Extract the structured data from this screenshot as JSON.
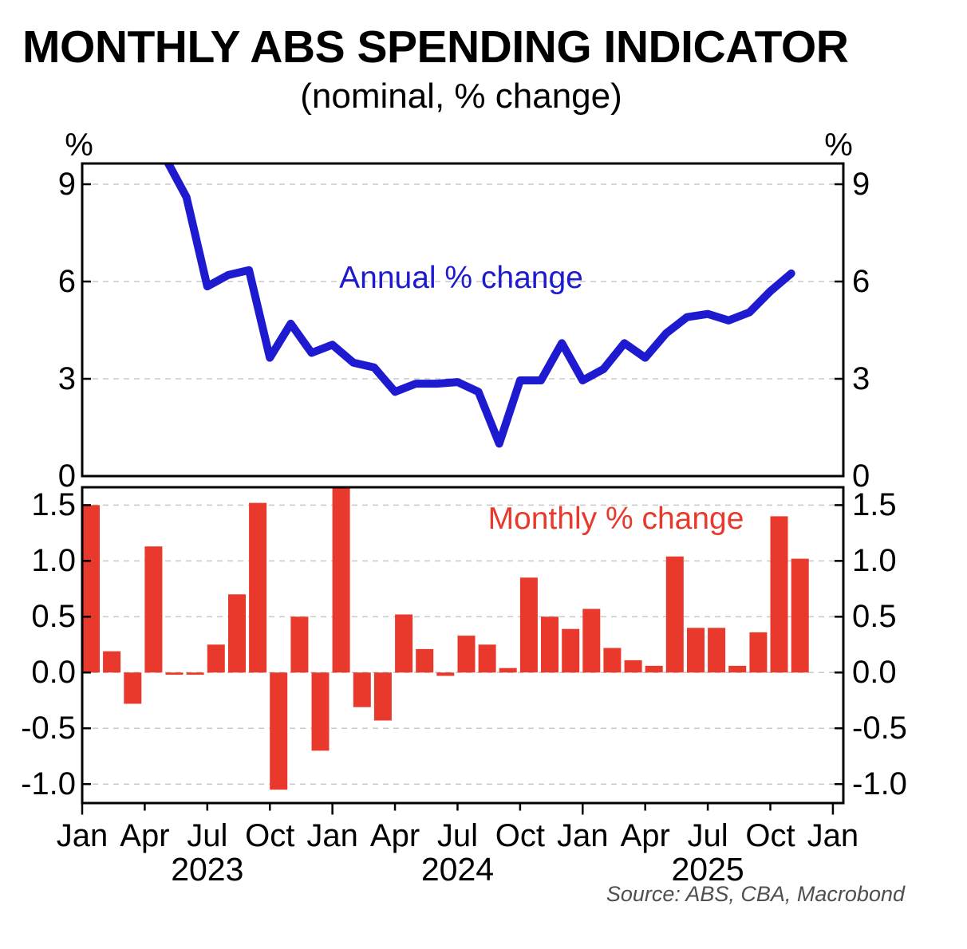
{
  "title": "MONTHLY ABS SPENDING INDICATOR",
  "subtitle": "(nominal, % change)",
  "source": "Source: ABS, CBA, Macrobond",
  "colors": {
    "annual_line": "#1e1ad0",
    "monthly_bar": "#e8392c",
    "axis": "#000000",
    "gridline": "#c8c8c8",
    "source_text": "#4f4f4f"
  },
  "top_panel": {
    "unit_label": "%",
    "series_label": "Annual % change",
    "ytick_labels": [
      "9",
      "6",
      "3",
      "0"
    ]
  },
  "bottom_panel": {
    "series_label": "Monthly % change",
    "ytick_labels": [
      "1.5",
      "1.0",
      "0.5",
      "0.0",
      "-0.5",
      "-1.0"
    ]
  },
  "x_axis": {
    "month_labels": [
      "Jan",
      "Apr",
      "Jul",
      "Oct",
      "Jan",
      "Apr",
      "Jul",
      "Oct",
      "Jan",
      "Apr",
      "Jul",
      "Oct",
      "Jan"
    ],
    "year_labels": [
      "2023",
      "2024",
      "2025"
    ]
  },
  "chart_data": [
    {
      "type": "line",
      "name": "Annual % change",
      "panel": "top",
      "color": "#1e1ad0",
      "ylim": [
        0,
        9.64
      ],
      "yticks": [
        9,
        6,
        3,
        0
      ],
      "x": [
        "Jan 2023",
        "Feb 2023",
        "Mar 2023",
        "Apr 2023",
        "May 2023",
        "Jun 2023",
        "Jul 2023",
        "Aug 2023",
        "Sep 2023",
        "Oct 2023",
        "Nov 2023",
        "Dec 2023",
        "Jan 2024",
        "Feb 2024",
        "Mar 2024",
        "Apr 2024",
        "May 2024",
        "Jun 2024",
        "Jul 2024",
        "Aug 2024",
        "Sep 2024",
        "Oct 2024",
        "Nov 2024",
        "Dec 2024",
        "Jan 2025",
        "Feb 2025",
        "Mar 2025",
        "Apr 2025",
        "May 2025",
        "Jun 2025",
        "Jul 2025",
        "Aug 2025",
        "Sep 2025",
        "Oct 2025",
        "Nov 2025"
      ],
      "values": [
        null,
        null,
        null,
        null,
        9.8,
        8.6,
        5.85,
        6.2,
        6.35,
        3.65,
        4.7,
        3.8,
        4.05,
        3.5,
        3.35,
        2.6,
        2.85,
        2.85,
        2.9,
        2.6,
        1.0,
        2.95,
        2.95,
        4.1,
        2.95,
        3.3,
        4.1,
        3.65,
        4.4,
        4.9,
        5.0,
        4.8,
        5.05,
        5.7,
        6.25
      ]
    },
    {
      "type": "bar",
      "name": "Monthly % change",
      "panel": "bottom",
      "color": "#e8392c",
      "ylim": [
        -1.17,
        1.66
      ],
      "yticks": [
        1.5,
        1.0,
        0.5,
        0.0,
        -0.5,
        -1.0
      ],
      "x": [
        "Jan 2023",
        "Feb 2023",
        "Mar 2023",
        "Apr 2023",
        "May 2023",
        "Jun 2023",
        "Jul 2023",
        "Aug 2023",
        "Sep 2023",
        "Oct 2023",
        "Nov 2023",
        "Dec 2023",
        "Jan 2024",
        "Feb 2024",
        "Mar 2024",
        "Apr 2024",
        "May 2024",
        "Jun 2024",
        "Jul 2024",
        "Aug 2024",
        "Sep 2024",
        "Oct 2024",
        "Nov 2024",
        "Dec 2024",
        "Jan 2025",
        "Feb 2025",
        "Mar 2025",
        "Apr 2025",
        "May 2025",
        "Jun 2025",
        "Jul 2025",
        "Aug 2025",
        "Sep 2025",
        "Oct 2025",
        "Nov 2025"
      ],
      "values": [
        1.5,
        0.19,
        -0.28,
        1.13,
        -0.02,
        -0.02,
        0.25,
        0.7,
        1.52,
        -1.05,
        0.5,
        -0.7,
        1.9,
        -0.31,
        -0.43,
        0.52,
        0.21,
        -0.03,
        0.33,
        0.25,
        0.04,
        0.85,
        0.5,
        0.39,
        0.57,
        0.22,
        0.11,
        0.06,
        1.04,
        0.4,
        0.4,
        0.06,
        0.36,
        1.4,
        1.02
      ]
    }
  ]
}
